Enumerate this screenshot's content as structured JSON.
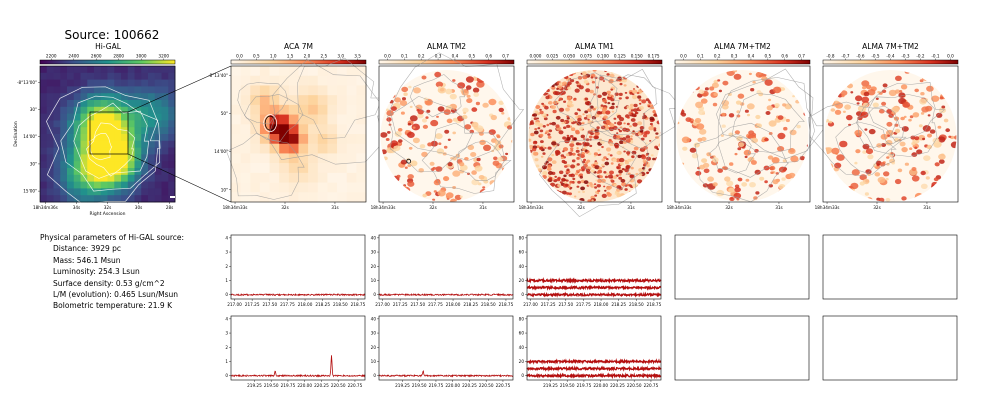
{
  "figure": {
    "title": "Source: 100662",
    "colors": {
      "red": "#b40f0f",
      "contour": "#9a9a9a",
      "frame": "#000000"
    }
  },
  "params": {
    "title": "Physical parameters of Hi-GAL source:",
    "items": [
      "Distance: 3929 pc",
      "Mass: 546.1 Msun",
      "Luminosity: 254.3 Lsun",
      "Surface density: 0.53 g/cm^2",
      "L/M (evolution): 0.465 Lsun/Msun",
      "Bolometric temperature: 21.9 K"
    ]
  },
  "chart_data": [
    {
      "type": "heatmap",
      "id": "higal",
      "title": "Hi-GAL",
      "colormap": "viridis",
      "colorbar_ticks": [
        "2200",
        "2400",
        "2600",
        "2800",
        "3000",
        "3200"
      ],
      "xlabel": "Right Ascension",
      "ylabel": "Declination",
      "x_ticks": [
        "18h34m36s",
        "34s",
        "32s",
        "30s",
        "28s"
      ],
      "y_ticks": [
        "-8°13'00\"",
        "30\"",
        "14'00\"",
        "30\"",
        "15'00\""
      ],
      "contours": true
    },
    {
      "type": "heatmap",
      "id": "aca7m",
      "title": "ACA 7M",
      "colormap": "OrRd",
      "colorbar_ticks": [
        "0.0",
        "0.5",
        "1.0",
        "1.5",
        "2.0",
        "2.5",
        "3.0",
        "3.5"
      ],
      "x_ticks": [
        "18h34m33s",
        "32s",
        "31s"
      ],
      "y_ticks": [
        "-8°13'40\"",
        "50\"",
        "14'00\"",
        "10\""
      ],
      "contours": true
    },
    {
      "type": "heatmap",
      "id": "tm2",
      "title": "ALMA TM2",
      "colormap": "OrRd",
      "colorbar_ticks": [
        "0.0",
        "0.1",
        "0.2",
        "0.3",
        "0.4",
        "0.5",
        "0.6",
        "0.7"
      ],
      "x_ticks": [
        "18h34m33s",
        "32s",
        "31s"
      ],
      "contours": true
    },
    {
      "type": "heatmap",
      "id": "tm1",
      "title": "ALMA TM1",
      "colormap": "OrRd",
      "colorbar_ticks": [
        "0.000",
        "0.025",
        "0.050",
        "0.075",
        "0.100",
        "0.125",
        "0.150",
        "0.175"
      ],
      "x_ticks": [
        "18h34m33s",
        "32s",
        "31s"
      ],
      "contours": true
    },
    {
      "type": "heatmap",
      "id": "tm7",
      "title": "ALMA 7M+TM2",
      "colormap": "OrRd",
      "colorbar_ticks": [
        "0.0",
        "0.1",
        "0.2",
        "0.3",
        "0.4",
        "0.5",
        "0.6",
        "0.7"
      ],
      "x_ticks": [
        "18h34m33s",
        "32s",
        "31s"
      ],
      "contours": true
    },
    {
      "type": "heatmap",
      "id": "tm7b",
      "title": "ALMA 7M+TM2",
      "colormap": "OrRd",
      "colorbar_ticks": [
        "-0.8",
        "-0.7",
        "-0.6",
        "-0.5",
        "-0.4",
        "-0.3",
        "-0.2",
        "-0.1",
        "0.0"
      ],
      "x_ticks": [
        "18h34m33s",
        "32s",
        "31s"
      ],
      "contours": true
    },
    {
      "type": "line",
      "id": "spec_r1c1",
      "xlim": [
        216.95,
        218.85
      ],
      "ylim": [
        -0.3,
        4.2
      ],
      "x_ticks": [
        217.0,
        217.25,
        217.5,
        217.75,
        218.0,
        218.25,
        218.5,
        218.75
      ],
      "y_ticks": [
        0,
        1,
        2,
        3,
        4
      ],
      "series": [
        {
          "level": 0.0,
          "noise": 0.05,
          "peaks": []
        }
      ]
    },
    {
      "type": "line",
      "id": "spec_r1c2",
      "xlim": [
        216.95,
        218.85
      ],
      "ylim": [
        -3,
        42
      ],
      "x_ticks": [
        217.0,
        217.25,
        217.5,
        217.75,
        218.0,
        218.25,
        218.5,
        218.75
      ],
      "y_ticks": [
        0,
        10,
        20,
        30,
        40
      ],
      "series": [
        {
          "level": 0.0,
          "noise": 0.5,
          "peaks": []
        }
      ]
    },
    {
      "type": "line",
      "id": "spec_r1c3",
      "xlim": [
        216.95,
        218.85
      ],
      "ylim": [
        -6,
        84
      ],
      "x_ticks": [
        217.0,
        217.25,
        217.5,
        217.75,
        218.0,
        218.25,
        218.5,
        218.75
      ],
      "y_ticks": [
        0,
        20,
        40,
        60,
        80
      ],
      "series": [
        {
          "level": 20.0,
          "noise": 1.5,
          "peaks": []
        },
        {
          "level": 10.0,
          "noise": 1.5,
          "peaks": []
        },
        {
          "level": 0.0,
          "noise": 1.5,
          "peaks": []
        }
      ]
    },
    {
      "type": "line",
      "id": "spec_r2c1",
      "xlim": [
        218.9,
        220.9
      ],
      "ylim": [
        -0.3,
        4.2
      ],
      "x_ticks": [
        219.25,
        219.5,
        219.75,
        220.0,
        220.25,
        220.5,
        220.75
      ],
      "y_ticks": [
        0,
        1,
        2,
        3,
        4
      ],
      "series": [
        {
          "level": 0.0,
          "noise": 0.05,
          "peaks": [
            {
              "x": 219.56,
              "h": 0.3
            },
            {
              "x": 220.4,
              "h": 1.4
            }
          ]
        }
      ]
    },
    {
      "type": "line",
      "id": "spec_r2c2",
      "xlim": [
        218.9,
        220.9
      ],
      "ylim": [
        -3,
        42
      ],
      "x_ticks": [
        219.25,
        219.5,
        219.75,
        220.0,
        220.25,
        220.5,
        220.75
      ],
      "y_ticks": [
        0,
        10,
        20,
        30,
        40
      ],
      "series": [
        {
          "level": 0.0,
          "noise": 0.5,
          "peaks": [
            {
              "x": 219.56,
              "h": 3.0
            }
          ]
        }
      ]
    },
    {
      "type": "line",
      "id": "spec_r2c3",
      "xlim": [
        218.9,
        220.9
      ],
      "ylim": [
        -6,
        84
      ],
      "x_ticks": [
        219.25,
        219.5,
        219.75,
        220.0,
        220.25,
        220.5,
        220.75
      ],
      "y_ticks": [
        0,
        20,
        40,
        60,
        80
      ],
      "series": [
        {
          "level": 20.0,
          "noise": 1.5,
          "peaks": []
        },
        {
          "level": 10.0,
          "noise": 1.5,
          "peaks": []
        },
        {
          "level": 0.0,
          "noise": 1.5,
          "peaks": []
        }
      ]
    }
  ]
}
